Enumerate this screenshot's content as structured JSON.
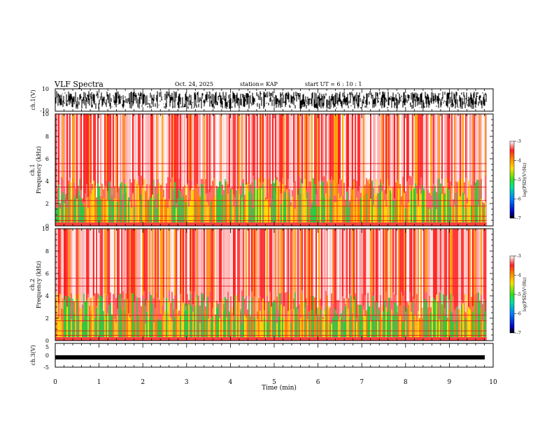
{
  "header": {
    "title": "VLF Spectra",
    "date": "Oct. 24, 2025",
    "station": "station= KAP",
    "start_ut": "start  UT =   6  : 10 : 1"
  },
  "chart_data": [
    {
      "type": "line",
      "name": "ch1-waveform",
      "ylabel": "ch.1(V)",
      "ylim": [
        -10,
        10
      ],
      "ytick_labels": [
        "10",
        "-10"
      ],
      "xlim": [
        0,
        10
      ],
      "description_values_range": [
        -9,
        8
      ]
    },
    {
      "type": "heatmap",
      "name": "ch1-spectrogram",
      "ylabel_line1": "ch.1",
      "ylabel_line2": "Frequency  (kHz)",
      "ylim": [
        0,
        10
      ],
      "yticks": [
        0,
        2,
        4,
        6,
        8,
        10
      ],
      "xlim": [
        0,
        9.85
      ],
      "colorbar": {
        "label": "log(PSD)(V²/Hz)",
        "range": [
          -7,
          -3
        ],
        "ticks": [
          "-3",
          "-4",
          "-5",
          "-6",
          "-7"
        ]
      }
    },
    {
      "type": "heatmap",
      "name": "ch2-spectrogram",
      "ylabel_line1": "ch.2",
      "ylabel_line2": "Frequency  (kHz)",
      "ylim": [
        0,
        10
      ],
      "yticks": [
        0,
        2,
        4,
        6,
        8,
        10
      ],
      "xlim": [
        0,
        9.85
      ],
      "colorbar": {
        "label": "log(PSD)(V²/Hz)",
        "range": [
          -7,
          -3
        ],
        "ticks": [
          "-3",
          "-4",
          "-5",
          "-6",
          "-7"
        ]
      }
    },
    {
      "type": "line",
      "name": "ch3-waveform",
      "ylabel": "ch.3(V)",
      "ylim": [
        -5,
        5
      ],
      "yticks": [
        5,
        0,
        -5
      ],
      "ytick_labels": [
        "5",
        "0",
        "-5"
      ],
      "xlim": [
        0,
        10
      ],
      "level": -0.8
    }
  ],
  "xaxis": {
    "label": "Time  (min)",
    "range": [
      0,
      10
    ],
    "ticks": [
      0,
      1,
      2,
      3,
      4,
      5,
      6,
      7,
      8,
      9,
      10
    ],
    "tick_labels": [
      "0",
      "1",
      "2",
      "3",
      "4",
      "5",
      "6",
      "7",
      "8",
      "9",
      "10"
    ]
  },
  "colors": {
    "spectro_high": "#ff2020",
    "spectro_mid": "#ffe000",
    "spectro_low": "#20d040",
    "background": "#ffffff",
    "trace": "#000000"
  }
}
